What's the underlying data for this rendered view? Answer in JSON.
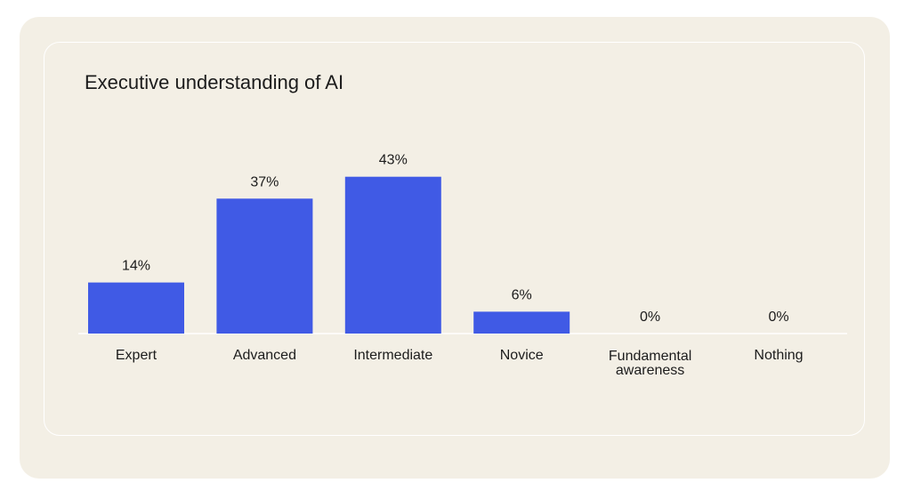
{
  "chart_data": {
    "type": "bar",
    "title": "Executive understanding of AI",
    "categories": [
      [
        "Expert"
      ],
      [
        "Advanced"
      ],
      [
        "Intermediate"
      ],
      [
        "Novice"
      ],
      [
        "Fundamental",
        "awareness"
      ],
      [
        "Nothing"
      ]
    ],
    "values": [
      14,
      37,
      43,
      6,
      0,
      0
    ],
    "value_labels": [
      "14%",
      "37%",
      "43%",
      "6%",
      "0%",
      "0%"
    ],
    "unit": "%",
    "ylim": [
      0,
      45
    ],
    "grid": false,
    "legend": "none",
    "bar_color": "#405ae5"
  }
}
